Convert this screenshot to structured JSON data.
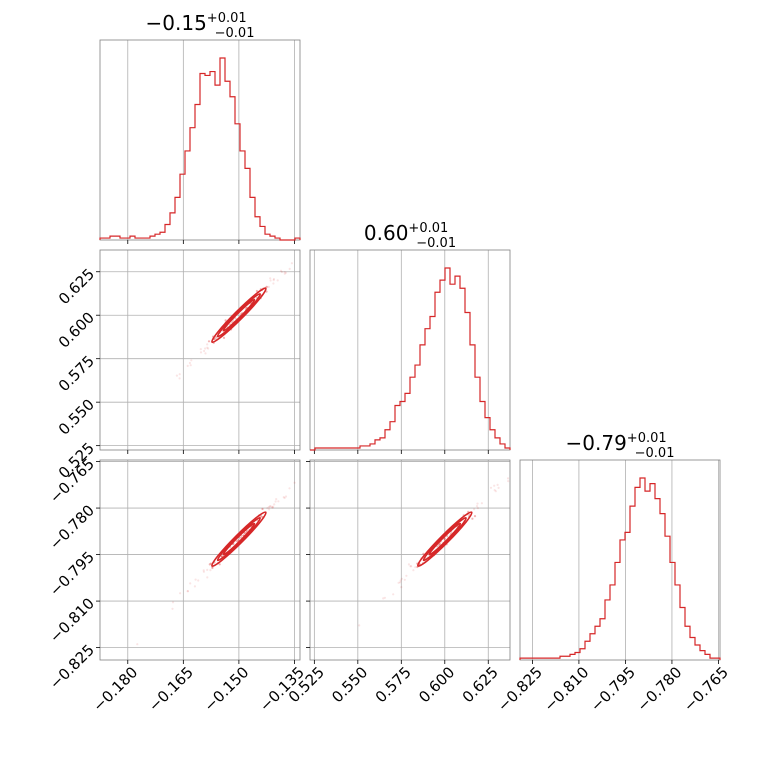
{
  "chart_data": {
    "type": "corner",
    "color": "#d62728",
    "parameters": [
      {
        "median": -0.15,
        "title": {
          "main": "−0.15",
          "sup": "+0.01",
          "sub": "−0.01"
        },
        "range": [
          -0.1875,
          -0.1335
        ],
        "ticks": [
          -0.18,
          -0.165,
          -0.15,
          -0.135
        ],
        "tick_labels": [
          "−0.180",
          "−0.165",
          "−0.150",
          "−0.135"
        ]
      },
      {
        "median": 0.6,
        "title": {
          "main": "0.60",
          "sup": "+0.01",
          "sub": "−0.01"
        },
        "range": [
          0.5225,
          0.6375
        ],
        "ticks": [
          0.525,
          0.55,
          0.575,
          0.6,
          0.625
        ],
        "tick_labels": [
          "0.525",
          "0.550",
          "0.575",
          "0.600",
          "0.625"
        ]
      },
      {
        "median": -0.79,
        "title": {
          "main": "−0.79",
          "sup": "+0.01",
          "sub": "−0.01"
        },
        "range": [
          -0.829,
          -0.7645
        ],
        "ticks": [
          -0.825,
          -0.81,
          -0.795,
          -0.78,
          -0.765
        ],
        "tick_labels": [
          "−0.825",
          "−0.810",
          "−0.795",
          "−0.780",
          "−0.765"
        ]
      }
    ],
    "histograms": [
      {
        "param": 0,
        "bins": 40,
        "counts": [
          1,
          1,
          2,
          2,
          1,
          1,
          2,
          1,
          1,
          1,
          2,
          3,
          4,
          8,
          14,
          22,
          34,
          46,
          58,
          70,
          86,
          85,
          87,
          80,
          94,
          82,
          74,
          60,
          46,
          37,
          22,
          12,
          7,
          3,
          2,
          1,
          0,
          0,
          0,
          1
        ]
      },
      {
        "param": 1,
        "bins": 40,
        "counts": [
          0,
          1,
          1,
          1,
          1,
          1,
          1,
          1,
          1,
          1,
          2,
          2,
          3,
          5,
          6,
          10,
          14,
          22,
          24,
          28,
          36,
          42,
          52,
          60,
          66,
          78,
          84,
          90,
          82,
          86,
          80,
          68,
          52,
          36,
          24,
          16,
          10,
          6,
          3,
          1
        ]
      },
      {
        "param": 2,
        "bins": 40,
        "counts": [
          1,
          1,
          1,
          1,
          1,
          1,
          1,
          1,
          2,
          2,
          3,
          4,
          6,
          10,
          14,
          18,
          22,
          32,
          40,
          52,
          64,
          68,
          82,
          92,
          97,
          90,
          94,
          86,
          78,
          66,
          52,
          40,
          28,
          18,
          12,
          8,
          5,
          3,
          1,
          1
        ]
      }
    ],
    "grid": true,
    "sample_correlation": 0.99
  }
}
